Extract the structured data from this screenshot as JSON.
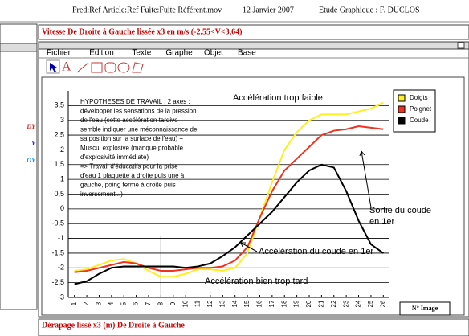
{
  "header": {
    "path": "Fred:Ref Article:Ref Fuite:Fuite Référent.mov",
    "date": "12 Janvier 2007",
    "study": "Etude Graphique :  F. DUCLOS"
  },
  "panel_title": "Vitesse De Droite à Gauche lissée x3 en m/s (-2,55<V<3,64)",
  "sidebar_labels": [
    "DY",
    "Y",
    "OY"
  ],
  "menu": [
    "Fichier",
    "Edition",
    "Texte",
    "Graphe",
    "Objet",
    "Base"
  ],
  "bottom_title": "Dérapage lissé x3 (m)   De Droite à Gauche",
  "chart_data": {
    "type": "line",
    "x": [
      1,
      2,
      3,
      4,
      5,
      6,
      7,
      8,
      9,
      10,
      11,
      12,
      13,
      14,
      15,
      16,
      17,
      18,
      19,
      20,
      21,
      22,
      23,
      24,
      25,
      26
    ],
    "xlim": [
      0.5,
      26.5
    ],
    "xticks": [
      1,
      2,
      3,
      4,
      5,
      6,
      7,
      8,
      9,
      10,
      11,
      12,
      13,
      14,
      15,
      16,
      17,
      18,
      19,
      20,
      21,
      22,
      23,
      24,
      25,
      26
    ],
    "xlabel": "N° Image",
    "ylim": [
      -3,
      4
    ],
    "yticks": [
      -3,
      {
        "value": -2.5,
        "label": "-2,5"
      },
      -2,
      {
        "value": -1.5,
        "label": "-1,5"
      },
      -1,
      {
        "value": -0.5,
        "label": "-0,5"
      },
      0,
      {
        "value": 0.5,
        "label": "0,5"
      },
      1,
      {
        "value": 1.5,
        "label": "1,5"
      },
      2,
      {
        "value": 2.5,
        "label": "2,5"
      },
      3,
      {
        "value": 3.5,
        "label": "3,5"
      }
    ],
    "grid": true,
    "series": [
      {
        "name": "Doigts",
        "color": "#ffee22",
        "values": [
          -2.1,
          -2.05,
          -1.9,
          -1.75,
          -1.7,
          -1.85,
          -2.1,
          -2.3,
          -2.3,
          -2.2,
          -2.05,
          -2.05,
          -2.1,
          -2.0,
          -1.5,
          -0.3,
          0.9,
          2.0,
          2.6,
          3.0,
          3.2,
          3.2,
          3.2,
          3.3,
          3.4,
          3.6
        ]
      },
      {
        "name": "Poignet",
        "color": "#ee3322",
        "values": [
          -2.15,
          -2.1,
          -2.0,
          -1.9,
          -1.8,
          -1.85,
          -2.0,
          -2.1,
          -2.1,
          -2.05,
          -2.0,
          -2.0,
          -1.95,
          -1.75,
          -1.3,
          -0.3,
          0.6,
          1.3,
          1.7,
          2.1,
          2.5,
          2.65,
          2.7,
          2.8,
          2.75,
          2.7
        ]
      },
      {
        "name": "Coude",
        "color": "#000000",
        "values": [
          -2.55,
          -2.45,
          -2.2,
          -2.0,
          -1.95,
          -1.95,
          -1.95,
          -1.95,
          -1.95,
          -2.0,
          -1.95,
          -1.85,
          -1.6,
          -1.3,
          -0.9,
          -0.5,
          -0.1,
          0.4,
          0.9,
          1.3,
          1.5,
          1.4,
          0.6,
          -0.4,
          -1.2,
          -1.5
        ]
      }
    ],
    "annotations": {
      "hypotheses": [
        "HYPOTHESES DE TRAVAIL : 2 axes :",
        "développer les sensations de la pression",
        "de l'eau (cette accélération tardive",
        "semble indiquer une méconnaissance de",
        "sa position sur la surface de l'eau) +",
        "Muscul explosive (manque probable",
        "d'explosivité immédiate)",
        "=> Travail d'éducatifs pour la prise",
        "d'eau 1 plaquette à droite puis une à",
        "gauche, poing fermé à droite puis",
        "inversement...)"
      ],
      "weak": "Accélération trop faible",
      "elbow": "Accélération du coude en 1er",
      "exit": [
        "Sortie du coude",
        "en 1er"
      ],
      "late": "Accélération bien trop tard"
    }
  }
}
